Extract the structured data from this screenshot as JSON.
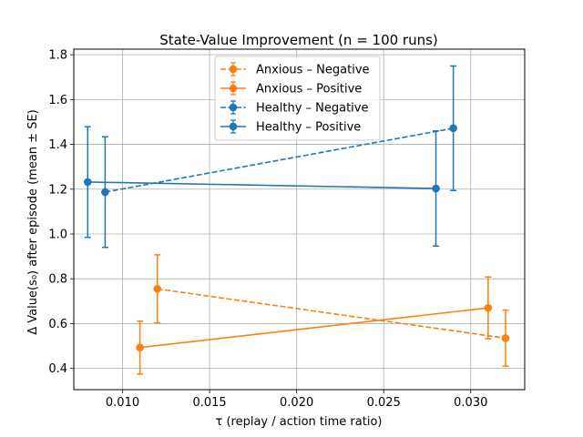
{
  "chart_data": {
    "type": "line",
    "title": "State-Value Improvement  (n = 100 runs)",
    "xlabel": "τ  (replay / action time ratio)",
    "ylabel": "Δ Value(s₀)  after episode   (mean ± SE)",
    "xlim": [
      0.0072,
      0.0331
    ],
    "ylim": [
      0.305,
      1.825
    ],
    "xticks": [
      0.01,
      0.015,
      0.02,
      0.025,
      0.03
    ],
    "xtick_labels": [
      "0.010",
      "0.015",
      "0.020",
      "0.025",
      "0.030"
    ],
    "yticks": [
      0.4,
      0.6,
      0.8,
      1.0,
      1.2,
      1.4,
      1.6,
      1.8
    ],
    "ytick_labels": [
      "0.4",
      "0.6",
      "0.8",
      "1.0",
      "1.2",
      "1.4",
      "1.6",
      "1.8"
    ],
    "grid": true,
    "legend_position": "top-center",
    "series": [
      {
        "name": "Anxious – Negative",
        "color": "#ff7f0e",
        "linestyle": "dashed",
        "x": [
          0.012,
          0.032
        ],
        "y": [
          0.755,
          0.535
        ],
        "err": [
          0.152,
          0.125
        ]
      },
      {
        "name": "Anxious – Positive",
        "color": "#ff7f0e",
        "linestyle": "solid",
        "x": [
          0.011,
          0.031
        ],
        "y": [
          0.493,
          0.67
        ],
        "err": [
          0.118,
          0.138
        ]
      },
      {
        "name": "Healthy – Negative",
        "color": "#1f77b4",
        "linestyle": "dashed",
        "x": [
          0.009,
          0.029
        ],
        "y": [
          1.187,
          1.472
        ],
        "err": [
          0.247,
          0.278
        ]
      },
      {
        "name": "Healthy – Positive",
        "color": "#1f77b4",
        "linestyle": "solid",
        "x": [
          0.008,
          0.028
        ],
        "y": [
          1.232,
          1.203
        ],
        "err": [
          0.247,
          0.257
        ]
      }
    ]
  }
}
